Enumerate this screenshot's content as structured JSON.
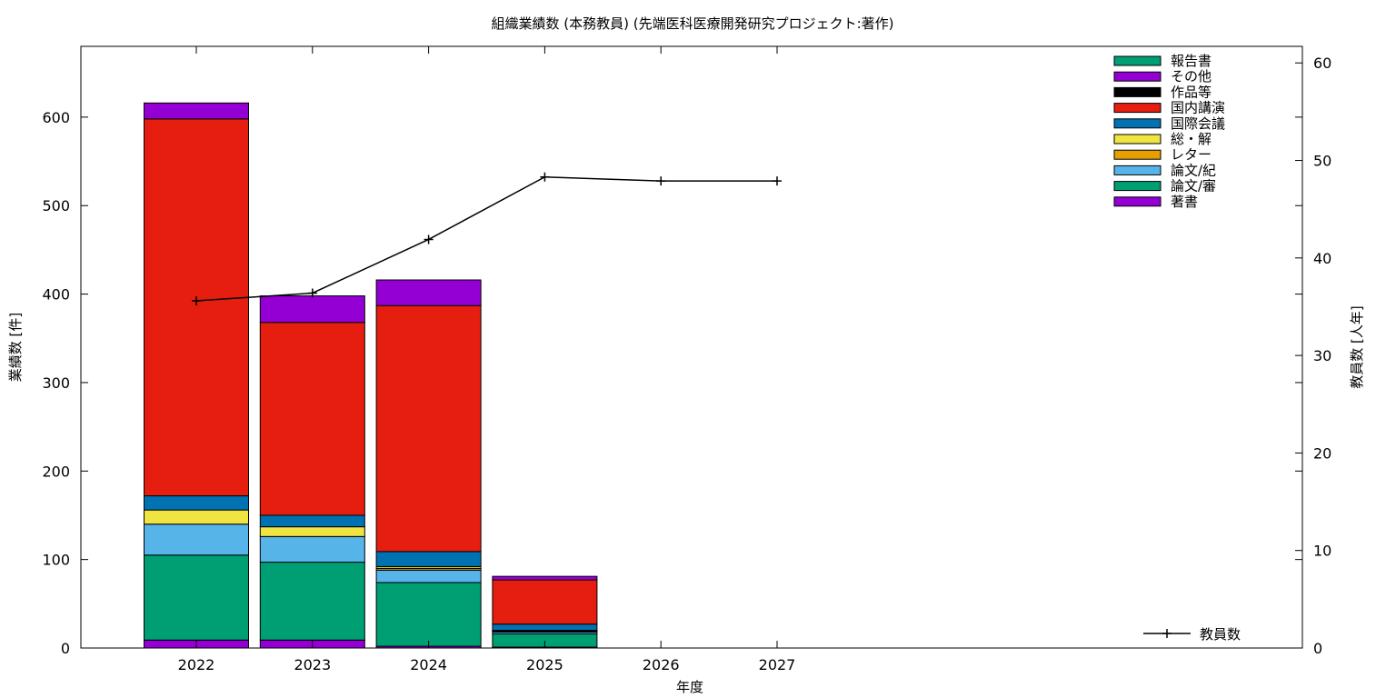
{
  "chart_data": {
    "type": "bar",
    "stacked": true,
    "title": "組織業績数 (本務教員) (先端医科医療開発研究プロジェクト:著作)",
    "xlabel": "年度",
    "ylabel": "業績数 [件]",
    "y2label": "教員数 [人年]",
    "categories": [
      "2022",
      "2023",
      "2024",
      "2025",
      "2026",
      "2027"
    ],
    "ylim": [
      0,
      680
    ],
    "y2lim": [
      0,
      61.7
    ],
    "yticks": [
      0,
      100,
      200,
      300,
      400,
      500,
      600
    ],
    "y2ticks": [
      0,
      10,
      20,
      30,
      40,
      50,
      60
    ],
    "legend_position": "top-right",
    "series": [
      {
        "name": "著書",
        "color": "#9400d3",
        "values": [
          9,
          9,
          2,
          1,
          null,
          null
        ]
      },
      {
        "name": "論文/審",
        "color": "#009e73",
        "values": [
          96,
          88,
          72,
          15,
          null,
          null
        ]
      },
      {
        "name": "論文/紀",
        "color": "#56b4e9",
        "values": [
          35,
          29,
          14,
          2,
          null,
          null
        ]
      },
      {
        "name": "レター",
        "color": "#e69f00",
        "values": [
          0,
          0,
          2,
          1,
          null,
          null
        ]
      },
      {
        "name": "総・解",
        "color": "#f0e442",
        "values": [
          16,
          11,
          2,
          1,
          null,
          null
        ]
      },
      {
        "name": "国際会議",
        "color": "#0072b2",
        "values": [
          16,
          13,
          17,
          7,
          null,
          null
        ]
      },
      {
        "name": "国内講演",
        "color": "#e51e10",
        "values": [
          426,
          218,
          278,
          50,
          null,
          null
        ]
      },
      {
        "name": "作品等",
        "color": "#000000",
        "values": [
          0,
          0,
          0,
          0,
          null,
          null
        ]
      },
      {
        "name": "その他",
        "color": "#9400d3",
        "values": [
          18,
          30,
          29,
          4,
          null,
          null
        ]
      },
      {
        "name": "報告書",
        "color": "#009e73",
        "values": [
          0,
          0,
          0,
          0,
          null,
          null
        ]
      }
    ],
    "line_series": {
      "name": "教員数",
      "color": "#000000",
      "axis": "right",
      "values": [
        35.6,
        36.4,
        41.9,
        48.3,
        47.9,
        47.9
      ]
    }
  }
}
